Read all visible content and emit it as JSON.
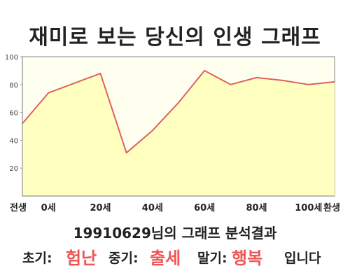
{
  "title": "재미로 보는 당신의 인생 그래프",
  "chart_data": {
    "type": "area",
    "x_tick_labels": [
      "전생",
      "0세",
      "20세",
      "40세",
      "60세",
      "80세",
      "100세",
      "환생"
    ],
    "y_ticks": [
      "20",
      "40",
      "60",
      "80",
      "100"
    ],
    "ylim": [
      0,
      100
    ],
    "x": [
      -10,
      0,
      20,
      30,
      40,
      50,
      60,
      70,
      80,
      90,
      100,
      110
    ],
    "values": [
      52,
      74,
      88,
      31,
      47,
      67,
      90,
      80,
      85,
      83,
      80,
      82
    ],
    "grid": false,
    "colors": {
      "line": "#e06060",
      "fill": "#ffffc0",
      "plot_bg": "#fffff0"
    }
  },
  "summary": "19910629님의 그래프 분석결과",
  "result": {
    "early_label": "초기:",
    "early_value": "험난",
    "mid_label": "중기:",
    "mid_value": "출세",
    "late_label": "말기:",
    "late_value": "행복",
    "ending": "입니다"
  },
  "colors": {
    "highlight": "#ee5555"
  }
}
